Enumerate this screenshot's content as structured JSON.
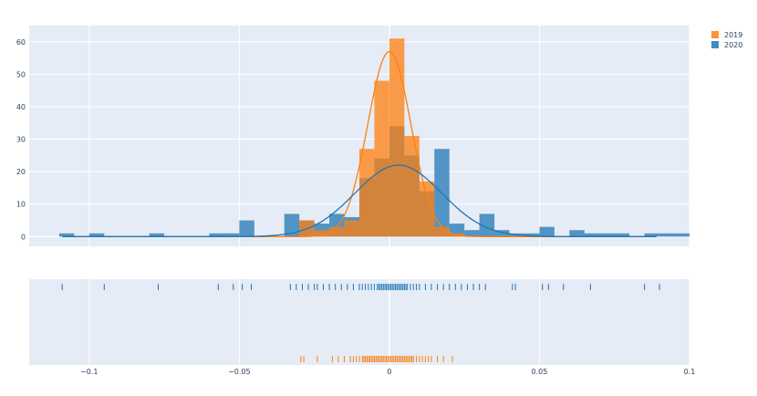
{
  "chart_data": {
    "type": "histogram",
    "x_ticks": [
      -0.1,
      -0.05,
      0,
      0.05,
      0.1
    ],
    "x_tick_labels": [
      "−0.1",
      "−0.05",
      "0",
      "0.05",
      "0.1"
    ],
    "xlim": [
      -0.12,
      0.1
    ],
    "hist_y_ticks": [
      0,
      10,
      20,
      30,
      40,
      50,
      60
    ],
    "hist_ylim": [
      -3,
      65
    ],
    "bin_width": 0.005,
    "grid": true,
    "legend_position": "top-right",
    "series": [
      {
        "name": "2019",
        "color": "#ff7f0e",
        "bins": [
          {
            "x0": -0.03,
            "count": 5
          },
          {
            "x0": -0.025,
            "count": 2
          },
          {
            "x0": -0.02,
            "count": 3
          },
          {
            "x0": -0.015,
            "count": 5
          },
          {
            "x0": -0.01,
            "count": 27
          },
          {
            "x0": -0.005,
            "count": 48
          },
          {
            "x0": 0.0,
            "count": 61
          },
          {
            "x0": 0.005,
            "count": 31
          },
          {
            "x0": 0.01,
            "count": 17
          },
          {
            "x0": 0.015,
            "count": 3
          },
          {
            "x0": 0.02,
            "count": 1
          }
        ],
        "kde": {
          "mean": 0.0,
          "sd": 0.0072,
          "scale": 57
        },
        "rug": [
          -0.0295,
          -0.0285,
          -0.024,
          -0.019,
          -0.017,
          -0.015,
          -0.013,
          -0.012,
          -0.011,
          -0.01,
          -0.009,
          -0.0085,
          -0.008,
          -0.0075,
          -0.007,
          -0.0065,
          -0.006,
          -0.0055,
          -0.005,
          -0.0045,
          -0.004,
          -0.0035,
          -0.003,
          -0.0025,
          -0.002,
          -0.0015,
          -0.001,
          -0.0005,
          0.0,
          0.0005,
          0.001,
          0.0015,
          0.002,
          0.0025,
          0.003,
          0.0035,
          0.004,
          0.0045,
          0.005,
          0.0055,
          0.006,
          0.0065,
          0.007,
          0.0075,
          0.008,
          0.009,
          0.01,
          0.011,
          0.012,
          0.013,
          0.014,
          0.016,
          0.018,
          0.021
        ]
      },
      {
        "name": "2020",
        "color": "#1f77b4",
        "bins": [
          {
            "x0": -0.11,
            "count": 1
          },
          {
            "x0": -0.1,
            "count": 1
          },
          {
            "x0": -0.08,
            "count": 1
          },
          {
            "x0": -0.06,
            "count": 1
          },
          {
            "x0": -0.055,
            "count": 1
          },
          {
            "x0": -0.05,
            "count": 5
          },
          {
            "x0": -0.035,
            "count": 7
          },
          {
            "x0": -0.03,
            "count": 5
          },
          {
            "x0": -0.025,
            "count": 4
          },
          {
            "x0": -0.02,
            "count": 7
          },
          {
            "x0": -0.015,
            "count": 6
          },
          {
            "x0": -0.01,
            "count": 18
          },
          {
            "x0": -0.005,
            "count": 24
          },
          {
            "x0": 0.0,
            "count": 34
          },
          {
            "x0": 0.005,
            "count": 25
          },
          {
            "x0": 0.01,
            "count": 14
          },
          {
            "x0": 0.015,
            "count": 27
          },
          {
            "x0": 0.02,
            "count": 4
          },
          {
            "x0": 0.025,
            "count": 2
          },
          {
            "x0": 0.03,
            "count": 7
          },
          {
            "x0": 0.035,
            "count": 2
          },
          {
            "x0": 0.04,
            "count": 1
          },
          {
            "x0": 0.045,
            "count": 1
          },
          {
            "x0": 0.05,
            "count": 3
          },
          {
            "x0": 0.06,
            "count": 2
          },
          {
            "x0": 0.065,
            "count": 1
          },
          {
            "x0": 0.07,
            "count": 1
          },
          {
            "x0": 0.075,
            "count": 1
          },
          {
            "x0": 0.085,
            "count": 1
          },
          {
            "x0": 0.09,
            "count": 1
          },
          {
            "x0": 0.095,
            "count": 1
          }
        ],
        "kde": {
          "mean": 0.003,
          "sd": 0.0145,
          "scale": 22
        },
        "rug": [
          -0.109,
          -0.095,
          -0.077,
          -0.057,
          -0.052,
          -0.049,
          -0.046,
          -0.033,
          -0.031,
          -0.029,
          -0.027,
          -0.025,
          -0.024,
          -0.022,
          -0.02,
          -0.018,
          -0.016,
          -0.014,
          -0.012,
          -0.01,
          -0.009,
          -0.008,
          -0.007,
          -0.006,
          -0.005,
          -0.004,
          -0.0035,
          -0.003,
          -0.0025,
          -0.002,
          -0.0015,
          -0.001,
          -0.0005,
          0.0,
          0.0005,
          0.001,
          0.0015,
          0.002,
          0.0025,
          0.003,
          0.0035,
          0.004,
          0.0045,
          0.005,
          0.0055,
          0.006,
          0.007,
          0.008,
          0.009,
          0.01,
          0.012,
          0.014,
          0.016,
          0.018,
          0.02,
          0.022,
          0.024,
          0.026,
          0.028,
          0.03,
          0.032,
          0.041,
          0.042,
          0.051,
          0.053,
          0.058,
          0.067,
          0.085,
          0.09
        ]
      }
    ]
  }
}
